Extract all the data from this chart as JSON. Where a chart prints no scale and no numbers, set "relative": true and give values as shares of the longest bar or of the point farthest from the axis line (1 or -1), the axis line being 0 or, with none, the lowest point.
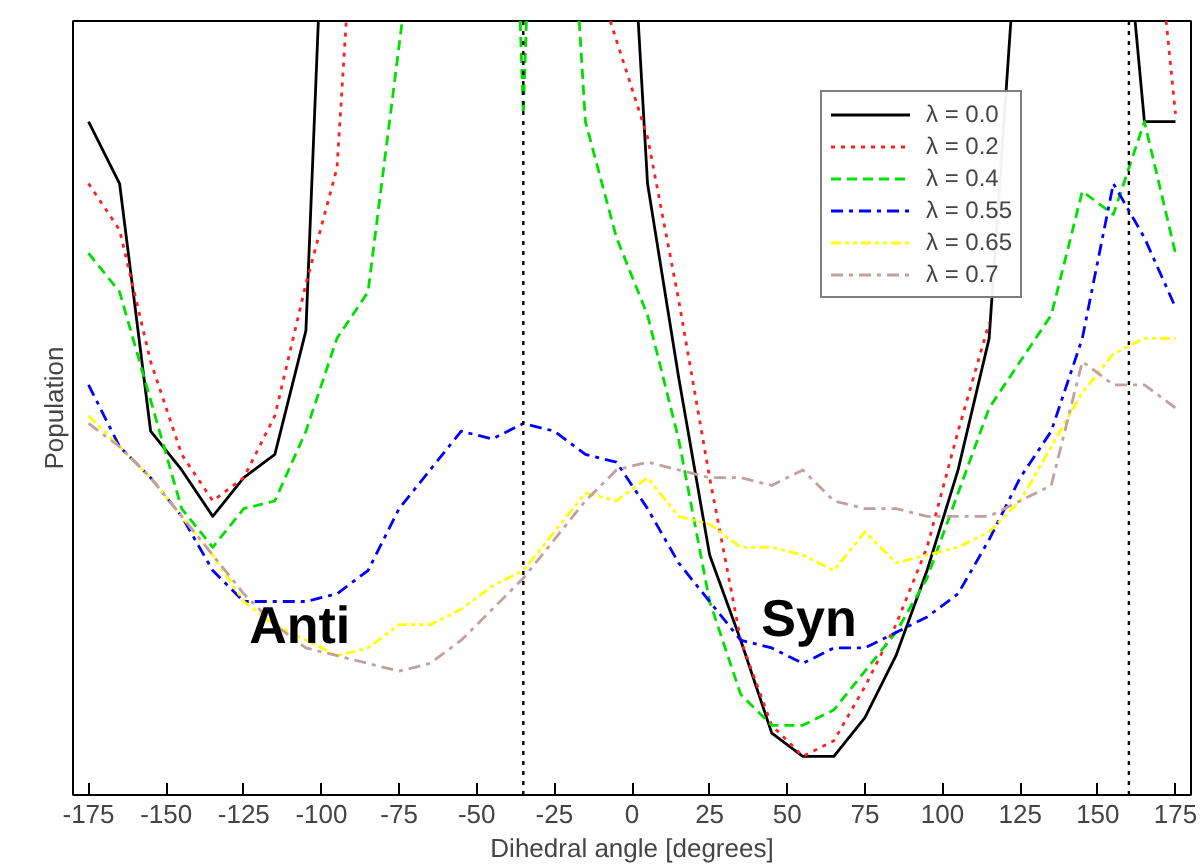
{
  "chart_data": {
    "type": "line",
    "relative": true,
    "xlabel": "Dihedral angle [degrees]",
    "ylabel": "Population",
    "xlim": [
      -180,
      180
    ],
    "xticks": [
      -175,
      -150,
      -125,
      -100,
      -75,
      -50,
      -25,
      0,
      25,
      50,
      75,
      100,
      125,
      150,
      175
    ],
    "legend": "top right",
    "grid": false,
    "series": [
      {
        "name": "λ = 0.0",
        "color": "#000000",
        "line_style": "solid",
        "x": [
          -175,
          -165,
          -155,
          -145,
          -135,
          -125,
          -115,
          -105,
          -101,
          -50,
          2,
          5,
          15,
          25,
          35,
          45,
          55,
          65,
          75,
          85,
          95,
          105,
          115,
          122,
          140,
          162,
          165,
          175
        ],
        "values": [
          0.87,
          0.79,
          0.47,
          0.42,
          0.36,
          0.41,
          0.44,
          0.6,
          1.0,
          null,
          1.0,
          0.79,
          0.54,
          0.31,
          0.2,
          0.08,
          0.05,
          0.05,
          0.1,
          0.18,
          0.29,
          0.42,
          0.59,
          1.0,
          null,
          1.0,
          0.87,
          0.87
        ]
      },
      {
        "name": "λ = 0.2",
        "color": "#ff2020",
        "line_style": "dotted",
        "x": [
          -175,
          -165,
          -155,
          -145,
          -135,
          -125,
          -115,
          -105,
          -95,
          -92,
          -50,
          -7,
          5,
          15,
          25,
          35,
          45,
          55,
          65,
          75,
          85,
          95,
          105,
          115,
          125,
          172,
          175
        ],
        "values": [
          0.79,
          0.73,
          0.56,
          0.44,
          0.38,
          0.41,
          0.49,
          0.66,
          0.81,
          1.0,
          null,
          1.0,
          0.85,
          0.64,
          0.41,
          0.2,
          0.09,
          0.05,
          0.07,
          0.14,
          0.22,
          0.32,
          0.47,
          0.61,
          null,
          1.0,
          0.88
        ]
      },
      {
        "name": "λ = 0.4",
        "color": "#00e000",
        "line_style": "dashed",
        "x": [
          -175,
          -165,
          -155,
          -145,
          -135,
          -125,
          -115,
          -105,
          -95,
          -85,
          -74,
          -55,
          -36,
          -35,
          -34,
          -25,
          -17,
          -15,
          -5,
          5,
          15,
          25,
          35,
          45,
          55,
          65,
          75,
          85,
          95,
          105,
          115,
          125,
          135,
          145,
          155,
          165,
          175
        ],
        "values": [
          0.7,
          0.65,
          0.51,
          0.37,
          0.32,
          0.37,
          0.38,
          0.47,
          0.59,
          0.65,
          1.0,
          null,
          1.0,
          0.88,
          1.0,
          null,
          1.0,
          0.87,
          0.72,
          0.62,
          0.46,
          0.25,
          0.13,
          0.09,
          0.09,
          0.11,
          0.16,
          0.21,
          0.28,
          0.39,
          0.5,
          0.56,
          0.62,
          0.78,
          0.75,
          0.87,
          0.7
        ]
      },
      {
        "name": "λ = 0.55",
        "color": "#0000ff",
        "line_style": "dashdot",
        "x": [
          -175,
          -165,
          -155,
          -145,
          -135,
          -125,
          -115,
          -105,
          -95,
          -85,
          -75,
          -65,
          -55,
          -45,
          -35,
          -25,
          -15,
          -5,
          5,
          15,
          25,
          35,
          45,
          55,
          65,
          75,
          85,
          95,
          105,
          115,
          125,
          135,
          145,
          155,
          165,
          175
        ],
        "values": [
          0.53,
          0.45,
          0.41,
          0.36,
          0.29,
          0.25,
          0.25,
          0.25,
          0.26,
          0.29,
          0.37,
          0.42,
          0.47,
          0.46,
          0.48,
          0.47,
          0.44,
          0.43,
          0.37,
          0.3,
          0.25,
          0.2,
          0.19,
          0.17,
          0.19,
          0.19,
          0.21,
          0.23,
          0.26,
          0.33,
          0.41,
          0.47,
          0.59,
          0.79,
          0.72,
          0.63
        ]
      },
      {
        "name": "λ = 0.65",
        "color": "#ffff00",
        "line_style": "dashdotdot",
        "x": [
          -175,
          -165,
          -155,
          -145,
          -135,
          -125,
          -115,
          -105,
          -95,
          -85,
          -75,
          -65,
          -55,
          -45,
          -35,
          -25,
          -15,
          -5,
          5,
          15,
          25,
          35,
          45,
          55,
          65,
          75,
          85,
          95,
          105,
          115,
          125,
          135,
          145,
          155,
          165,
          175
        ],
        "values": [
          0.49,
          0.45,
          0.41,
          0.36,
          0.31,
          0.25,
          0.22,
          0.2,
          0.18,
          0.19,
          0.22,
          0.22,
          0.24,
          0.27,
          0.29,
          0.34,
          0.39,
          0.38,
          0.41,
          0.36,
          0.35,
          0.32,
          0.32,
          0.31,
          0.29,
          0.34,
          0.3,
          0.31,
          0.32,
          0.34,
          0.38,
          0.45,
          0.52,
          0.57,
          0.59,
          0.59
        ]
      },
      {
        "name": "λ = 0.7",
        "color": "#c0a0a0",
        "line_style": "dashdot",
        "x": [
          -175,
          -165,
          -155,
          -145,
          -135,
          -125,
          -115,
          -105,
          -95,
          -85,
          -75,
          -65,
          -55,
          -45,
          -35,
          -25,
          -15,
          -5,
          5,
          15,
          25,
          35,
          45,
          55,
          65,
          75,
          85,
          95,
          105,
          115,
          125,
          135,
          145,
          155,
          165,
          175
        ],
        "values": [
          0.48,
          0.45,
          0.41,
          0.36,
          0.31,
          0.26,
          0.22,
          0.19,
          0.18,
          0.17,
          0.16,
          0.17,
          0.2,
          0.24,
          0.28,
          0.33,
          0.38,
          0.42,
          0.43,
          0.42,
          0.41,
          0.41,
          0.4,
          0.42,
          0.38,
          0.37,
          0.37,
          0.36,
          0.36,
          0.36,
          0.38,
          0.4,
          0.56,
          0.53,
          0.53,
          0.5
        ]
      }
    ],
    "ref_lines": [
      {
        "axis": "x",
        "value": -35,
        "color": "#000000",
        "line_style": "dotted"
      },
      {
        "axis": "x",
        "value": 160,
        "color": "#000000",
        "line_style": "dotted"
      }
    ],
    "annotations": [
      {
        "text": "Anti",
        "x": -107,
        "y": 0.22
      },
      {
        "text": "Syn",
        "x": 57,
        "y": 0.19
      }
    ]
  }
}
